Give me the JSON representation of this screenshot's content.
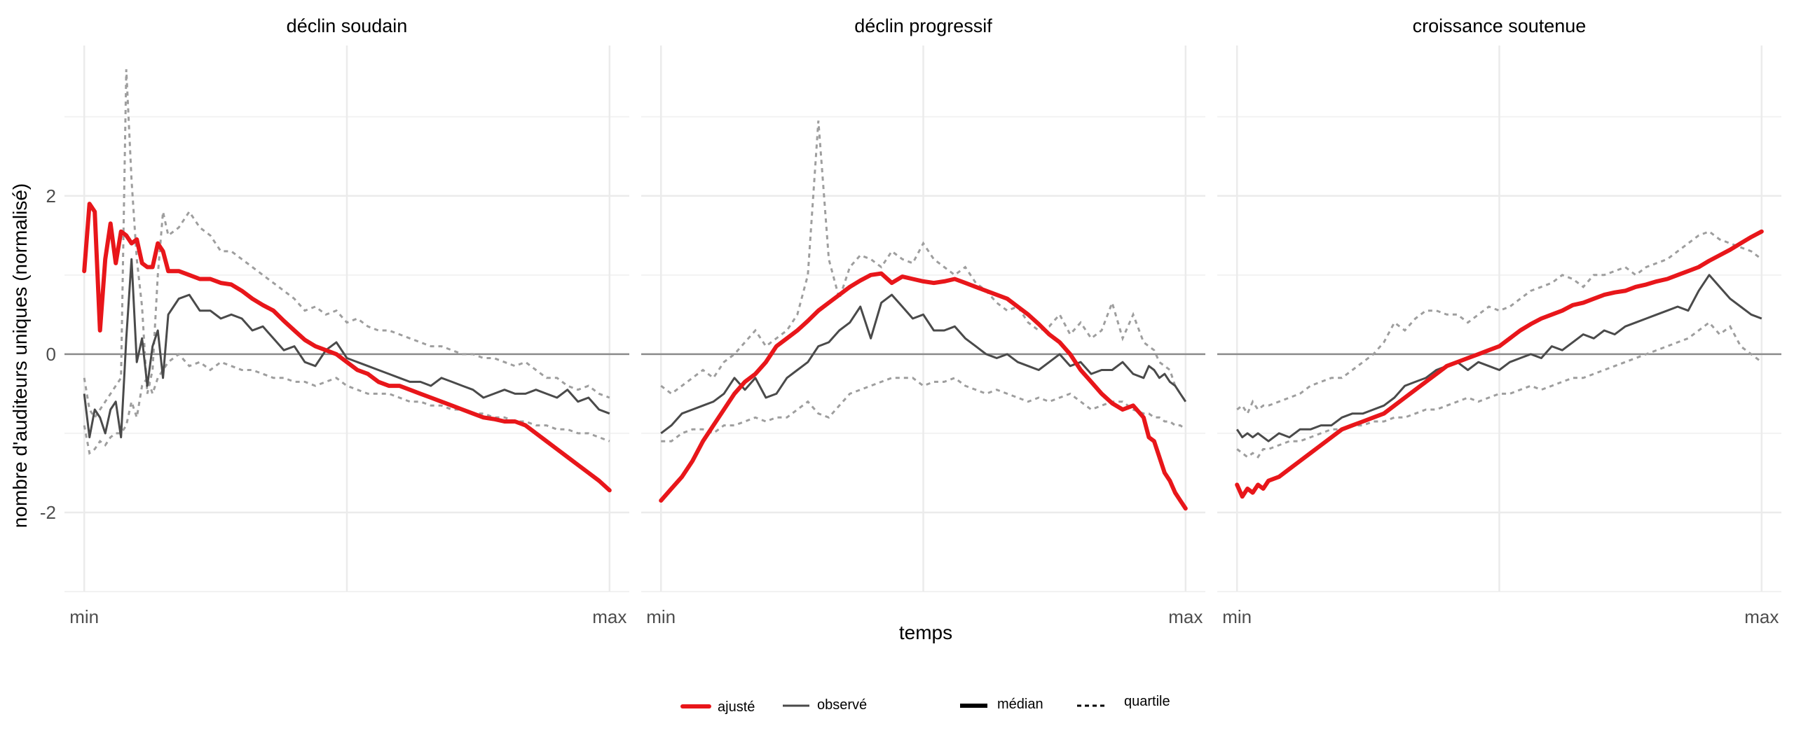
{
  "chart_data": {
    "type": "line",
    "xlabel": "temps",
    "ylabel": "nombre d'auditeurs uniques (normalisé)",
    "x_tick_labels": [
      "min",
      "max"
    ],
    "y_ticks": [
      -2,
      0,
      2
    ],
    "ylim": [
      -3,
      3.9
    ],
    "xlim": [
      0,
      1
    ],
    "grid": true,
    "legend_placement": "bottom",
    "colors": {
      "fitted": "#e8161a",
      "observed": "#4a4a4a",
      "quartile": "#9e9e9e",
      "legend_linetype": "#000000",
      "zero": "#8c8c8c"
    },
    "legend": {
      "colour": [
        {
          "label": "ajusté",
          "key": "fitted"
        },
        {
          "label": "observé",
          "key": "observed"
        }
      ],
      "linetype": [
        {
          "label": "médian",
          "key": "solid"
        },
        {
          "label": "quartile",
          "key": "dashed"
        }
      ]
    },
    "panels": [
      {
        "title": "déclin soudain",
        "x": [
          0,
          0.01,
          0.02,
          0.03,
          0.04,
          0.05,
          0.06,
          0.07,
          0.08,
          0.09,
          0.1,
          0.11,
          0.12,
          0.13,
          0.14,
          0.15,
          0.16,
          0.18,
          0.2,
          0.22,
          0.24,
          0.26,
          0.28,
          0.3,
          0.32,
          0.34,
          0.36,
          0.38,
          0.4,
          0.42,
          0.44,
          0.46,
          0.48,
          0.5,
          0.52,
          0.54,
          0.56,
          0.58,
          0.6,
          0.62,
          0.64,
          0.66,
          0.68,
          0.7,
          0.72,
          0.74,
          0.76,
          0.78,
          0.8,
          0.82,
          0.84,
          0.86,
          0.88,
          0.9,
          0.92,
          0.94,
          0.96,
          0.98,
          1
        ],
        "fitted": [
          1.05,
          1.9,
          1.8,
          0.3,
          1.2,
          1.65,
          1.15,
          1.55,
          1.5,
          1.4,
          1.45,
          1.15,
          1.1,
          1.1,
          1.4,
          1.3,
          1.05,
          1.05,
          1.0,
          0.95,
          0.95,
          0.9,
          0.88,
          0.8,
          0.7,
          0.62,
          0.55,
          0.42,
          0.3,
          0.18,
          0.1,
          0.05,
          0.0,
          -0.1,
          -0.2,
          -0.25,
          -0.35,
          -0.4,
          -0.4,
          -0.45,
          -0.5,
          -0.55,
          -0.6,
          -0.65,
          -0.7,
          -0.75,
          -0.8,
          -0.82,
          -0.85,
          -0.85,
          -0.9,
          -1.0,
          -1.1,
          -1.2,
          -1.3,
          -1.4,
          -1.5,
          -1.6,
          -1.72
        ],
        "observed": [
          -0.5,
          -1.05,
          -0.7,
          -0.8,
          -1.0,
          -0.7,
          -0.6,
          -1.05,
          0.2,
          1.2,
          -0.1,
          0.2,
          -0.4,
          0.1,
          0.3,
          -0.3,
          0.5,
          0.7,
          0.75,
          0.55,
          0.55,
          0.45,
          0.5,
          0.45,
          0.3,
          0.35,
          0.2,
          0.05,
          0.1,
          -0.1,
          -0.15,
          0.05,
          0.15,
          -0.05,
          -0.1,
          -0.15,
          -0.2,
          -0.25,
          -0.3,
          -0.35,
          -0.35,
          -0.4,
          -0.3,
          -0.35,
          -0.4,
          -0.45,
          -0.55,
          -0.5,
          -0.45,
          -0.5,
          -0.5,
          -0.45,
          -0.5,
          -0.55,
          -0.45,
          -0.6,
          -0.55,
          -0.7,
          -0.75
        ],
        "q75": [
          -0.3,
          -0.7,
          -0.8,
          -0.7,
          -0.6,
          -0.5,
          -0.4,
          -0.3,
          3.6,
          2.2,
          1.2,
          0.6,
          -0.5,
          -0.2,
          1.0,
          1.8,
          1.5,
          1.6,
          1.8,
          1.6,
          1.5,
          1.3,
          1.3,
          1.2,
          1.1,
          1.0,
          0.9,
          0.8,
          0.7,
          0.55,
          0.6,
          0.5,
          0.55,
          0.4,
          0.45,
          0.35,
          0.3,
          0.3,
          0.25,
          0.2,
          0.15,
          0.1,
          0.1,
          0.05,
          0.0,
          0.0,
          -0.05,
          -0.05,
          -0.1,
          -0.15,
          -0.1,
          -0.2,
          -0.3,
          -0.3,
          -0.4,
          -0.45,
          -0.4,
          -0.5,
          -0.55
        ],
        "q25": [
          -0.9,
          -1.25,
          -1.2,
          -1.1,
          -1.15,
          -1.05,
          -1.0,
          -1.0,
          -0.9,
          -0.6,
          -0.8,
          -0.4,
          -0.3,
          -0.5,
          -0.3,
          -0.2,
          -0.1,
          0.0,
          -0.15,
          -0.1,
          -0.2,
          -0.1,
          -0.15,
          -0.2,
          -0.2,
          -0.25,
          -0.3,
          -0.3,
          -0.35,
          -0.35,
          -0.4,
          -0.35,
          -0.3,
          -0.4,
          -0.45,
          -0.5,
          -0.5,
          -0.5,
          -0.55,
          -0.6,
          -0.6,
          -0.65,
          -0.65,
          -0.7,
          -0.7,
          -0.75,
          -0.75,
          -0.8,
          -0.8,
          -0.85,
          -0.85,
          -0.9,
          -0.9,
          -0.95,
          -0.95,
          -1.0,
          -1.0,
          -1.05,
          -1.1
        ]
      },
      {
        "title": "déclin progressif",
        "x": [
          0,
          0.02,
          0.04,
          0.06,
          0.08,
          0.1,
          0.12,
          0.14,
          0.16,
          0.18,
          0.2,
          0.22,
          0.24,
          0.26,
          0.28,
          0.3,
          0.32,
          0.34,
          0.36,
          0.38,
          0.4,
          0.42,
          0.44,
          0.46,
          0.48,
          0.5,
          0.52,
          0.54,
          0.56,
          0.58,
          0.6,
          0.62,
          0.64,
          0.66,
          0.68,
          0.7,
          0.72,
          0.74,
          0.76,
          0.78,
          0.8,
          0.82,
          0.84,
          0.86,
          0.88,
          0.9,
          0.92,
          0.93,
          0.94,
          0.95,
          0.96,
          0.97,
          0.98,
          0.99,
          1
        ],
        "fitted": [
          -1.85,
          -1.7,
          -1.55,
          -1.35,
          -1.1,
          -0.9,
          -0.7,
          -0.5,
          -0.35,
          -0.25,
          -0.1,
          0.1,
          0.2,
          0.3,
          0.42,
          0.55,
          0.65,
          0.75,
          0.85,
          0.93,
          1.0,
          1.02,
          0.9,
          0.98,
          0.95,
          0.92,
          0.9,
          0.92,
          0.95,
          0.9,
          0.85,
          0.8,
          0.75,
          0.7,
          0.6,
          0.5,
          0.38,
          0.25,
          0.15,
          0.0,
          -0.2,
          -0.35,
          -0.5,
          -0.62,
          -0.7,
          -0.65,
          -0.8,
          -1.05,
          -1.1,
          -1.3,
          -1.5,
          -1.6,
          -1.75,
          -1.85,
          -1.95
        ],
        "observed": [
          -1.0,
          -0.9,
          -0.75,
          -0.7,
          -0.65,
          -0.6,
          -0.5,
          -0.3,
          -0.45,
          -0.3,
          -0.55,
          -0.5,
          -0.3,
          -0.2,
          -0.1,
          0.1,
          0.15,
          0.3,
          0.4,
          0.6,
          0.2,
          0.65,
          0.75,
          0.6,
          0.45,
          0.5,
          0.3,
          0.3,
          0.35,
          0.2,
          0.1,
          0.0,
          -0.05,
          0.0,
          -0.1,
          -0.15,
          -0.2,
          -0.1,
          0.0,
          -0.15,
          -0.1,
          -0.25,
          -0.2,
          -0.2,
          -0.1,
          -0.25,
          -0.3,
          -0.15,
          -0.2,
          -0.3,
          -0.25,
          -0.35,
          -0.4,
          -0.5,
          -0.6
        ],
        "q75": [
          -0.4,
          -0.5,
          -0.4,
          -0.3,
          -0.2,
          -0.3,
          -0.1,
          0.0,
          0.15,
          0.3,
          0.1,
          0.2,
          0.3,
          0.5,
          1.0,
          2.95,
          1.2,
          0.7,
          1.1,
          1.25,
          1.2,
          1.1,
          1.3,
          1.2,
          1.15,
          1.4,
          1.2,
          1.1,
          1.0,
          1.1,
          0.9,
          0.8,
          0.65,
          0.55,
          0.6,
          0.4,
          0.3,
          0.35,
          0.5,
          0.25,
          0.4,
          0.2,
          0.3,
          0.65,
          0.2,
          0.5,
          0.15,
          0.1,
          0.05,
          -0.1,
          -0.15,
          -0.2,
          -0.4,
          -0.5,
          -0.6
        ],
        "q25": [
          -1.1,
          -1.1,
          -1.0,
          -0.95,
          -0.95,
          -1.0,
          -0.9,
          -0.9,
          -0.85,
          -0.8,
          -0.85,
          -0.8,
          -0.8,
          -0.7,
          -0.6,
          -0.75,
          -0.8,
          -0.65,
          -0.5,
          -0.45,
          -0.4,
          -0.35,
          -0.3,
          -0.3,
          -0.3,
          -0.4,
          -0.35,
          -0.35,
          -0.3,
          -0.4,
          -0.45,
          -0.5,
          -0.45,
          -0.5,
          -0.55,
          -0.6,
          -0.55,
          -0.6,
          -0.55,
          -0.5,
          -0.6,
          -0.7,
          -0.65,
          -0.6,
          -0.6,
          -0.7,
          -0.75,
          -0.75,
          -0.8,
          -0.8,
          -0.85,
          -0.85,
          -0.9,
          -0.9,
          -0.95
        ]
      },
      {
        "title": "croissance soutenue",
        "x": [
          0,
          0.01,
          0.02,
          0.03,
          0.04,
          0.05,
          0.06,
          0.08,
          0.1,
          0.12,
          0.14,
          0.16,
          0.18,
          0.2,
          0.22,
          0.24,
          0.26,
          0.28,
          0.3,
          0.32,
          0.34,
          0.36,
          0.38,
          0.4,
          0.42,
          0.44,
          0.46,
          0.48,
          0.5,
          0.52,
          0.54,
          0.56,
          0.58,
          0.6,
          0.62,
          0.64,
          0.66,
          0.68,
          0.7,
          0.72,
          0.74,
          0.76,
          0.78,
          0.8,
          0.82,
          0.84,
          0.86,
          0.88,
          0.9,
          0.92,
          0.94,
          0.96,
          0.98,
          1
        ],
        "fitted": [
          -1.65,
          -1.8,
          -1.7,
          -1.75,
          -1.65,
          -1.7,
          -1.6,
          -1.55,
          -1.45,
          -1.35,
          -1.25,
          -1.15,
          -1.05,
          -0.95,
          -0.9,
          -0.85,
          -0.8,
          -0.75,
          -0.65,
          -0.55,
          -0.45,
          -0.35,
          -0.25,
          -0.15,
          -0.1,
          -0.05,
          0.0,
          0.05,
          0.1,
          0.2,
          0.3,
          0.38,
          0.45,
          0.5,
          0.55,
          0.62,
          0.65,
          0.7,
          0.75,
          0.78,
          0.8,
          0.85,
          0.88,
          0.92,
          0.95,
          1.0,
          1.05,
          1.1,
          1.18,
          1.25,
          1.32,
          1.4,
          1.48,
          1.55
        ],
        "observed": [
          -0.95,
          -1.05,
          -1.0,
          -1.05,
          -1.0,
          -1.05,
          -1.1,
          -1.0,
          -1.05,
          -0.95,
          -0.95,
          -0.9,
          -0.9,
          -0.8,
          -0.75,
          -0.75,
          -0.7,
          -0.65,
          -0.55,
          -0.4,
          -0.35,
          -0.3,
          -0.2,
          -0.15,
          -0.1,
          -0.2,
          -0.1,
          -0.15,
          -0.2,
          -0.1,
          -0.05,
          0.0,
          -0.05,
          0.1,
          0.05,
          0.15,
          0.25,
          0.2,
          0.3,
          0.25,
          0.35,
          0.4,
          0.45,
          0.5,
          0.55,
          0.6,
          0.55,
          0.8,
          1.0,
          0.85,
          0.7,
          0.6,
          0.5,
          0.45
        ],
        "q75": [
          -0.7,
          -0.65,
          -0.75,
          -0.6,
          -0.7,
          -0.65,
          -0.65,
          -0.6,
          -0.55,
          -0.5,
          -0.4,
          -0.35,
          -0.3,
          -0.3,
          -0.2,
          -0.1,
          0.0,
          0.15,
          0.4,
          0.3,
          0.45,
          0.55,
          0.55,
          0.5,
          0.5,
          0.4,
          0.5,
          0.6,
          0.55,
          0.6,
          0.7,
          0.8,
          0.85,
          0.9,
          1.0,
          0.95,
          0.85,
          1.0,
          1.0,
          1.05,
          1.1,
          1.0,
          1.1,
          1.15,
          1.2,
          1.3,
          1.4,
          1.5,
          1.55,
          1.45,
          1.4,
          1.35,
          1.3,
          1.2
        ],
        "q25": [
          -1.2,
          -1.25,
          -1.3,
          -1.25,
          -1.3,
          -1.2,
          -1.2,
          -1.15,
          -1.1,
          -1.1,
          -1.05,
          -1.0,
          -0.95,
          -0.95,
          -0.9,
          -0.9,
          -0.85,
          -0.85,
          -0.8,
          -0.8,
          -0.75,
          -0.7,
          -0.7,
          -0.65,
          -0.6,
          -0.55,
          -0.6,
          -0.55,
          -0.5,
          -0.5,
          -0.45,
          -0.4,
          -0.45,
          -0.4,
          -0.35,
          -0.3,
          -0.3,
          -0.25,
          -0.2,
          -0.15,
          -0.1,
          -0.05,
          0.0,
          0.05,
          0.1,
          0.15,
          0.2,
          0.3,
          0.4,
          0.25,
          0.35,
          0.1,
          0.0,
          -0.1
        ]
      }
    ]
  }
}
